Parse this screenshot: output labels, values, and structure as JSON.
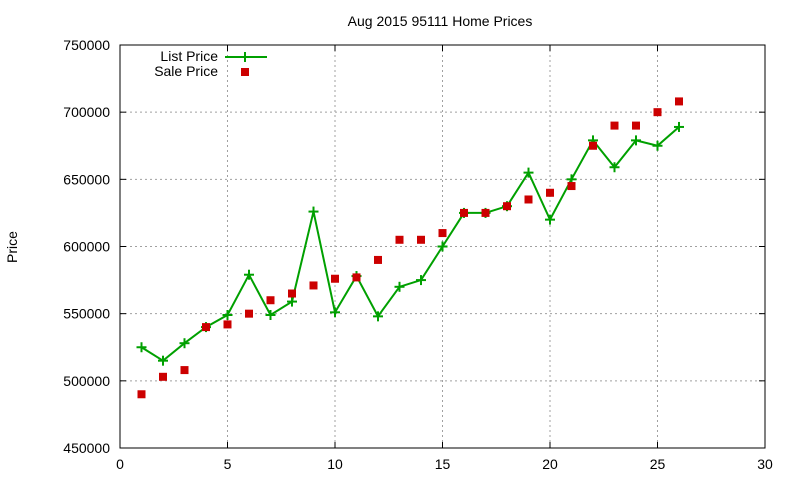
{
  "chart_data": {
    "type": "line",
    "title": "Aug 2015 95111 Home Prices",
    "xlabel": "",
    "ylabel": "Price",
    "xlim": [
      0,
      30
    ],
    "ylim": [
      450000,
      750000
    ],
    "x_ticks": [
      0,
      5,
      10,
      15,
      20,
      25,
      30
    ],
    "y_ticks": [
      450000,
      500000,
      550000,
      600000,
      650000,
      700000,
      750000
    ],
    "x_tick_labels": [
      "0",
      "5",
      "10",
      "15",
      "20",
      "25",
      "30"
    ],
    "y_tick_labels": [
      "450000",
      "500000",
      "550000",
      "600000",
      "650000",
      "700000",
      "750000"
    ],
    "grid": true,
    "legend_position": "top-left",
    "series": [
      {
        "name": "List Price",
        "style": "line-with-plus-markers",
        "color": "#00a000",
        "x": [
          1,
          2,
          3,
          4,
          5,
          6,
          7,
          8,
          9,
          10,
          11,
          12,
          13,
          14,
          15,
          16,
          17,
          18,
          19,
          20,
          21,
          22,
          23,
          24,
          25,
          26
        ],
        "values": [
          525000,
          515000,
          528000,
          540000,
          549000,
          579000,
          549000,
          559000,
          626000,
          551000,
          578000,
          548000,
          570000,
          575000,
          600000,
          625000,
          625000,
          630000,
          655000,
          620000,
          650000,
          679000,
          659000,
          679000,
          675000,
          689000
        ]
      },
      {
        "name": "Sale Price",
        "style": "square-markers",
        "color": "#cc0000",
        "x": [
          1,
          2,
          3,
          4,
          5,
          6,
          7,
          8,
          9,
          10,
          11,
          12,
          13,
          14,
          15,
          16,
          17,
          18,
          19,
          20,
          21,
          22,
          23,
          24,
          25,
          26
        ],
        "values": [
          490000,
          503000,
          508000,
          540000,
          542000,
          550000,
          560000,
          565000,
          571000,
          576000,
          577000,
          590000,
          605000,
          605000,
          610000,
          625000,
          625000,
          630000,
          635000,
          640000,
          645000,
          675000,
          690000,
          690000,
          700000,
          708000
        ]
      }
    ]
  }
}
